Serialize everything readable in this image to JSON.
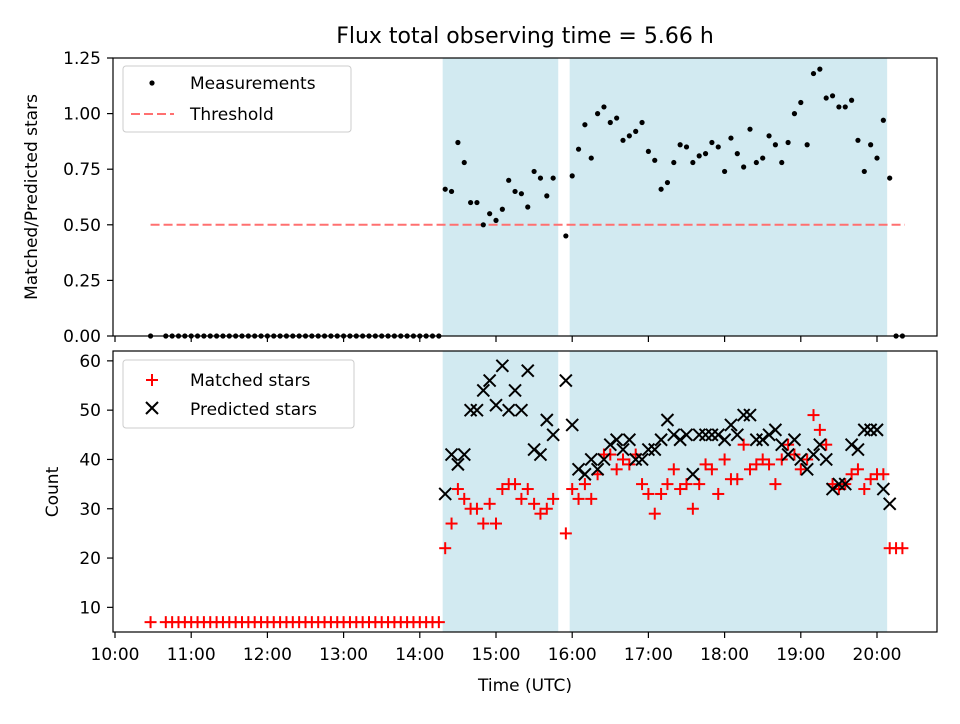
{
  "title": "Flux total observing time = 5.66 h",
  "colors": {
    "band": "#add8e6",
    "measurement": "#000000",
    "threshold": "#ff7070",
    "matched": "#ff0000",
    "predicted": "#000000"
  },
  "chart_data": [
    {
      "type": "scatter",
      "ylabel": "Matched/Predicted stars",
      "ylim": [
        0,
        1.25
      ],
      "yticks": [
        "0.00",
        "0.25",
        "0.50",
        "0.75",
        "1.00",
        "1.25"
      ],
      "xlim": [
        "10:00",
        "20:50"
      ],
      "legend": "top-left",
      "threshold": {
        "name": "Threshold",
        "value": 0.5,
        "x": [
          "10:28",
          "20:22"
        ]
      },
      "observing_windows": [
        [
          "14:18",
          "15:49"
        ],
        [
          "15:58",
          "20:08"
        ]
      ],
      "series": [
        {
          "name": "Measurements",
          "x": [
            "10:28",
            "10:40",
            "10:45",
            "10:50",
            "10:55",
            "11:00",
            "11:05",
            "11:10",
            "11:15",
            "11:20",
            "11:25",
            "11:30",
            "11:35",
            "11:40",
            "11:45",
            "11:50",
            "11:55",
            "12:00",
            "12:05",
            "12:10",
            "12:15",
            "12:20",
            "12:25",
            "12:30",
            "12:35",
            "12:40",
            "12:45",
            "12:50",
            "12:55",
            "13:00",
            "13:05",
            "13:10",
            "13:15",
            "13:20",
            "13:25",
            "13:30",
            "13:35",
            "13:40",
            "13:45",
            "13:50",
            "13:55",
            "14:00",
            "14:05",
            "14:10",
            "14:15",
            "14:20",
            "14:25",
            "14:30",
            "14:35",
            "14:40",
            "14:45",
            "14:50",
            "14:55",
            "15:00",
            "15:05",
            "15:10",
            "15:15",
            "15:20",
            "15:25",
            "15:30",
            "15:35",
            "15:40",
            "15:45",
            "15:55",
            "16:00",
            "16:05",
            "16:10",
            "16:15",
            "16:20",
            "16:25",
            "16:30",
            "16:35",
            "16:40",
            "16:45",
            "16:50",
            "16:55",
            "17:00",
            "17:05",
            "17:10",
            "17:15",
            "17:20",
            "17:25",
            "17:30",
            "17:35",
            "17:40",
            "17:45",
            "17:50",
            "17:55",
            "18:00",
            "18:05",
            "18:10",
            "18:15",
            "18:20",
            "18:25",
            "18:30",
            "18:35",
            "18:40",
            "18:45",
            "18:50",
            "18:55",
            "19:00",
            "19:05",
            "19:10",
            "19:15",
            "19:20",
            "19:25",
            "19:30",
            "19:35",
            "19:40",
            "19:45",
            "19:50",
            "19:55",
            "20:00",
            "20:05",
            "20:10",
            "20:15",
            "20:20"
          ],
          "y": [
            0,
            0,
            0,
            0,
            0,
            0,
            0,
            0,
            0,
            0,
            0,
            0,
            0,
            0,
            0,
            0,
            0,
            0,
            0,
            0,
            0,
            0,
            0,
            0,
            0,
            0,
            0,
            0,
            0,
            0,
            0,
            0,
            0,
            0,
            0,
            0,
            0,
            0,
            0,
            0,
            0,
            0,
            0,
            0,
            0,
            0.66,
            0.65,
            0.87,
            0.78,
            0.6,
            0.6,
            0.5,
            0.55,
            0.52,
            0.57,
            0.7,
            0.65,
            0.64,
            0.58,
            0.74,
            0.71,
            0.63,
            0.71,
            0.45,
            0.72,
            0.84,
            0.95,
            0.8,
            1.0,
            1.03,
            0.96,
            0.98,
            0.88,
            0.9,
            0.92,
            0.96,
            0.83,
            0.79,
            0.66,
            0.69,
            0.78,
            0.86,
            0.85,
            0.78,
            0.81,
            0.82,
            0.87,
            0.85,
            0.74,
            0.89,
            0.82,
            0.76,
            0.93,
            0.78,
            0.8,
            0.9,
            0.86,
            0.78,
            0.87,
            1.0,
            1.05,
            0.86,
            1.18,
            1.2,
            1.07,
            1.08,
            1.03,
            1.03,
            1.06,
            0.88,
            0.74,
            0.86,
            0.8,
            0.97,
            0.71,
            0,
            0
          ]
        }
      ]
    },
    {
      "type": "scatter",
      "xlabel": "Time (UTC)",
      "ylabel": "Count",
      "ylim": [
        5,
        62
      ],
      "yticks": [
        "10",
        "20",
        "30",
        "40",
        "50",
        "60"
      ],
      "xticks": [
        "10:00",
        "11:00",
        "12:00",
        "13:00",
        "14:00",
        "15:00",
        "16:00",
        "17:00",
        "18:00",
        "19:00",
        "20:00"
      ],
      "xlim": [
        "10:00",
        "20:50"
      ],
      "legend": "top-left",
      "observing_windows": [
        [
          "14:18",
          "15:49"
        ],
        [
          "15:58",
          "20:08"
        ]
      ],
      "series": [
        {
          "name": "Matched stars",
          "x": [
            "10:28",
            "10:40",
            "10:45",
            "10:50",
            "10:55",
            "11:00",
            "11:05",
            "11:10",
            "11:15",
            "11:20",
            "11:25",
            "11:30",
            "11:35",
            "11:40",
            "11:45",
            "11:50",
            "11:55",
            "12:00",
            "12:05",
            "12:10",
            "12:15",
            "12:20",
            "12:25",
            "12:30",
            "12:35",
            "12:40",
            "12:45",
            "12:50",
            "12:55",
            "13:00",
            "13:05",
            "13:10",
            "13:15",
            "13:20",
            "13:25",
            "13:30",
            "13:35",
            "13:40",
            "13:45",
            "13:50",
            "13:55",
            "14:00",
            "14:05",
            "14:10",
            "14:15",
            "14:20",
            "14:25",
            "14:30",
            "14:35",
            "14:40",
            "14:45",
            "14:50",
            "14:55",
            "15:00",
            "15:05",
            "15:10",
            "15:15",
            "15:20",
            "15:25",
            "15:30",
            "15:35",
            "15:40",
            "15:45",
            "15:55",
            "16:00",
            "16:05",
            "16:10",
            "16:15",
            "16:20",
            "16:25",
            "16:30",
            "16:35",
            "16:40",
            "16:45",
            "16:50",
            "16:55",
            "17:00",
            "17:05",
            "17:10",
            "17:15",
            "17:20",
            "17:25",
            "17:30",
            "17:35",
            "17:40",
            "17:45",
            "17:50",
            "17:55",
            "18:00",
            "18:05",
            "18:10",
            "18:15",
            "18:20",
            "18:25",
            "18:30",
            "18:35",
            "18:40",
            "18:45",
            "18:50",
            "18:55",
            "19:00",
            "19:05",
            "19:10",
            "19:15",
            "19:20",
            "19:25",
            "19:30",
            "19:35",
            "19:40",
            "19:45",
            "19:50",
            "19:55",
            "20:00",
            "20:05",
            "20:10",
            "20:15",
            "20:20"
          ],
          "y": [
            7,
            7,
            7,
            7,
            7,
            7,
            7,
            7,
            7,
            7,
            7,
            7,
            7,
            7,
            7,
            7,
            7,
            7,
            7,
            7,
            7,
            7,
            7,
            7,
            7,
            7,
            7,
            7,
            7,
            7,
            7,
            7,
            7,
            7,
            7,
            7,
            7,
            7,
            7,
            7,
            7,
            7,
            7,
            7,
            7,
            22,
            27,
            34,
            32,
            30,
            30,
            27,
            31,
            27,
            34,
            35,
            35,
            32,
            34,
            31,
            29,
            30,
            32,
            25,
            34,
            32,
            35,
            32,
            37,
            41,
            41,
            38,
            40,
            39,
            41,
            35,
            33,
            29,
            33,
            35,
            38,
            34,
            35,
            30,
            35,
            39,
            38,
            33,
            40,
            36,
            36,
            43,
            38,
            39,
            40,
            39,
            35,
            40,
            43,
            41,
            38,
            40,
            49,
            46,
            43,
            35,
            34,
            35,
            37,
            38,
            34,
            36,
            37,
            37,
            22,
            22,
            22
          ]
        },
        {
          "name": "Predicted stars",
          "x": [
            "14:20",
            "14:25",
            "14:30",
            "14:35",
            "14:40",
            "14:45",
            "14:50",
            "14:55",
            "15:00",
            "15:05",
            "15:10",
            "15:15",
            "15:20",
            "15:25",
            "15:30",
            "15:35",
            "15:40",
            "15:45",
            "15:55",
            "16:00",
            "16:05",
            "16:10",
            "16:15",
            "16:20",
            "16:25",
            "16:30",
            "16:35",
            "16:40",
            "16:45",
            "16:50",
            "16:55",
            "17:00",
            "17:05",
            "17:10",
            "17:15",
            "17:20",
            "17:25",
            "17:30",
            "17:35",
            "17:40",
            "17:45",
            "17:50",
            "17:55",
            "18:00",
            "18:05",
            "18:10",
            "18:15",
            "18:20",
            "18:25",
            "18:30",
            "18:35",
            "18:40",
            "18:45",
            "18:50",
            "18:55",
            "19:00",
            "19:05",
            "19:10",
            "19:15",
            "19:20",
            "19:25",
            "19:30",
            "19:35",
            "19:40",
            "19:45",
            "19:50",
            "19:55",
            "20:00",
            "20:05",
            "20:10"
          ],
          "y": [
            33,
            41,
            39,
            41,
            50,
            50,
            54,
            56,
            51,
            59,
            50,
            54,
            50,
            58,
            42,
            41,
            48,
            45,
            56,
            47,
            38,
            37,
            40,
            38,
            40,
            43,
            44,
            42,
            44,
            40,
            40,
            42,
            42,
            44,
            48,
            45,
            44,
            45,
            37,
            45,
            45,
            45,
            45,
            44,
            47,
            45,
            49,
            49,
            44,
            44,
            45,
            46,
            43,
            41,
            44,
            40,
            38,
            41,
            43,
            40,
            34,
            35,
            35,
            43,
            42,
            46,
            46,
            46,
            34,
            31
          ]
        }
      ]
    }
  ]
}
